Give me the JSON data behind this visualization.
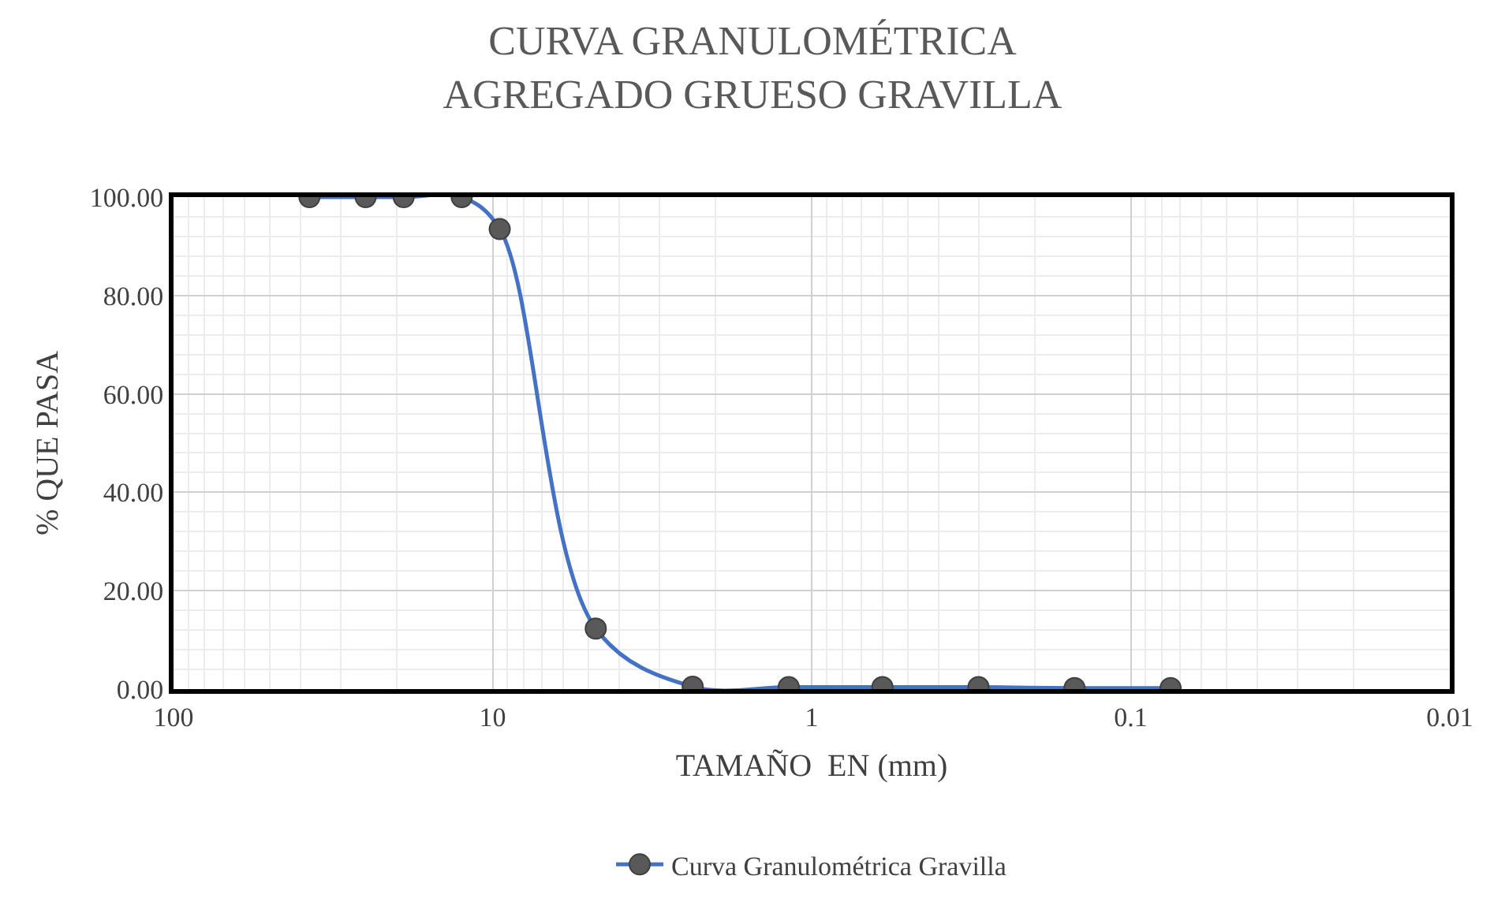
{
  "chart_data": {
    "type": "line",
    "title": "CURVA GRANULOMÉTRICA\nAGREGADO GRUESO GRAVILLA",
    "xlabel": "TAMAÑO  EN (mm)",
    "ylabel": "% QUE PASA",
    "x": [
      37.5,
      25,
      19,
      12.5,
      9.5,
      4.75,
      2.36,
      1.18,
      0.6,
      0.3,
      0.15,
      0.075
    ],
    "series": [
      {
        "name": "Curva Granulométrica Gravilla",
        "color": "#4472c4",
        "values": [
          100,
          100,
          100,
          100,
          93.5,
          12.3,
          0.5,
          0.4,
          0.4,
          0.4,
          0.2,
          0.2
        ]
      }
    ],
    "xlim": [
      100,
      0.01
    ],
    "xticks": [
      100,
      10,
      1,
      0.1,
      0.01
    ],
    "log": "x",
    "ylim": [
      0,
      100
    ],
    "yticks": [
      {
        "value": 0,
        "label": "0.00"
      },
      {
        "value": 20,
        "label": "20.00"
      },
      {
        "value": 40,
        "label": "40.00"
      },
      {
        "value": 60,
        "label": "60.00"
      },
      {
        "value": 80,
        "label": "80.00"
      },
      {
        "value": 100,
        "label": "100.00"
      }
    ],
    "grid": true,
    "legend": "bottom",
    "marker": "circle",
    "line_style": "solid"
  }
}
